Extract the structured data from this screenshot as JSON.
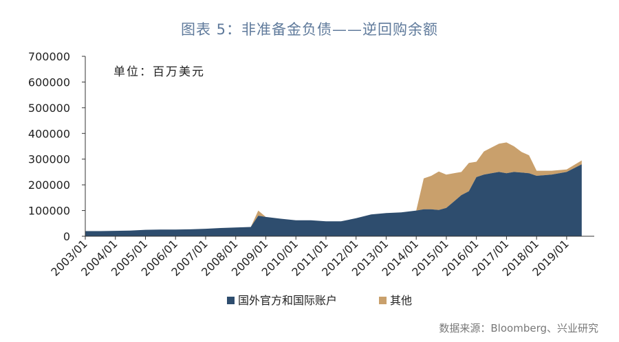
{
  "title": "图表 5：非准备金负债——逆回购余额",
  "source": "数据来源：Bloomberg、兴业研究",
  "colors": {
    "official": "#2e4d6e",
    "other": "#c9a06c",
    "axis": "#333333"
  },
  "chart_data": {
    "type": "area",
    "stacked": true,
    "unit_label": "单位：百万美元",
    "ylim": [
      0,
      700000
    ],
    "y_ticks": [
      "700000",
      "600000",
      "500000",
      "400000",
      "300000",
      "200000",
      "100000",
      "0"
    ],
    "x_ticks": [
      "2003/01",
      "2004/01",
      "2005/01",
      "2006/01",
      "2007/01",
      "2008/01",
      "2009/01",
      "2010/01",
      "2011/01",
      "2012/01",
      "2013/01",
      "2014/01",
      "2015/01",
      "2016/01",
      "2017/01",
      "2018/01",
      "2019/01"
    ],
    "legend": "bottom-center",
    "grid": false,
    "x": [
      "2003/01",
      "2003/07",
      "2004/01",
      "2004/07",
      "2005/01",
      "2005/07",
      "2006/01",
      "2006/07",
      "2007/01",
      "2007/07",
      "2008/01",
      "2008/07",
      "2008/10",
      "2009/01",
      "2009/07",
      "2010/01",
      "2010/07",
      "2011/01",
      "2011/07",
      "2012/01",
      "2012/07",
      "2013/01",
      "2013/07",
      "2014/01",
      "2014/04",
      "2014/07",
      "2014/10",
      "2015/01",
      "2015/04",
      "2015/07",
      "2015/10",
      "2016/01",
      "2016/04",
      "2016/07",
      "2016/10",
      "2017/01",
      "2017/04",
      "2017/07",
      "2017/10",
      "2018/01",
      "2018/07",
      "2019/01",
      "2019/07"
    ],
    "series": [
      {
        "name": "国外官方和国际账户",
        "values": [
          20000,
          20000,
          21000,
          22000,
          25000,
          26000,
          26000,
          27000,
          29000,
          32000,
          34000,
          36000,
          80000,
          75000,
          68000,
          62000,
          62000,
          58000,
          58000,
          70000,
          85000,
          90000,
          93000,
          100000,
          105000,
          105000,
          102000,
          110000,
          135000,
          160000,
          175000,
          230000,
          240000,
          245000,
          250000,
          245000,
          250000,
          248000,
          245000,
          235000,
          240000,
          250000,
          280000
        ]
      },
      {
        "name": "其他",
        "values": [
          0,
          0,
          0,
          0,
          0,
          0,
          0,
          0,
          0,
          0,
          0,
          0,
          20000,
          0,
          0,
          0,
          0,
          0,
          0,
          0,
          0,
          0,
          0,
          0,
          120000,
          130000,
          150000,
          130000,
          110000,
          90000,
          110000,
          60000,
          90000,
          100000,
          110000,
          120000,
          100000,
          80000,
          70000,
          20000,
          15000,
          10000,
          15000
        ]
      }
    ]
  }
}
